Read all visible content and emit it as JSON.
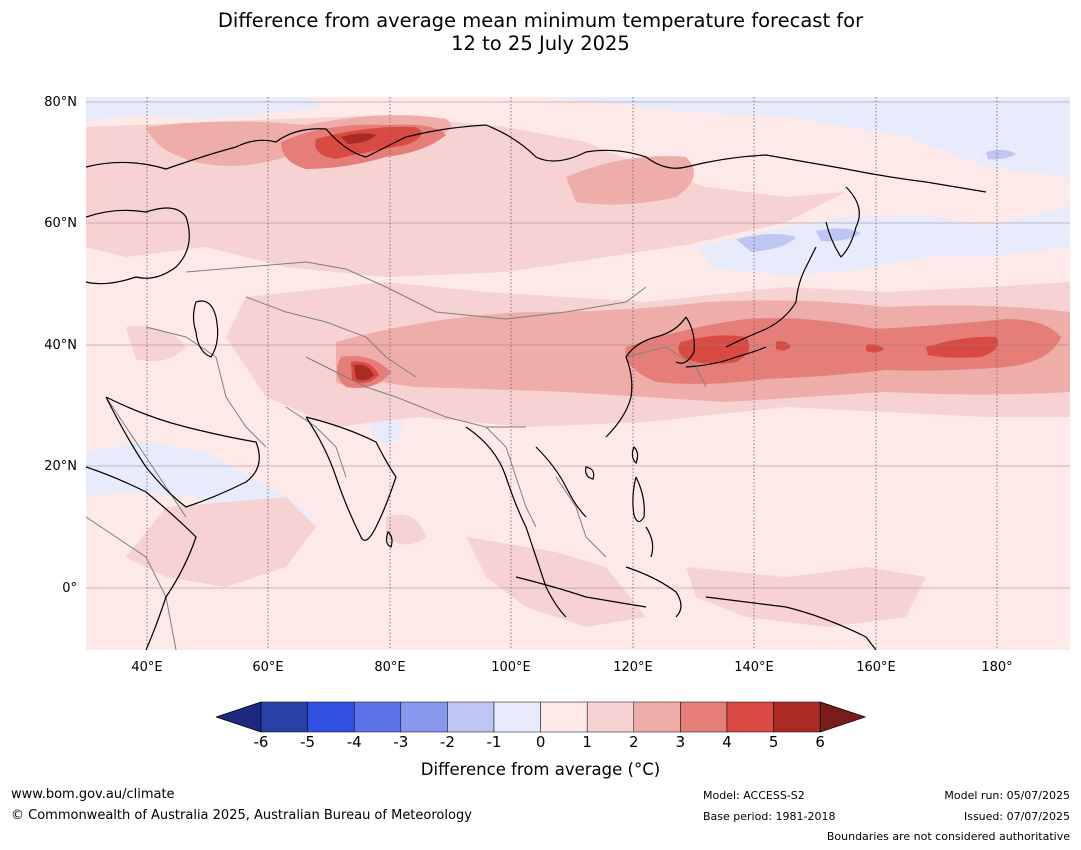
{
  "title_line1": "Difference from average mean minimum temperature forecast for",
  "title_line2": "12 to 25 July 2025",
  "map": {
    "lat_labels": [
      "80°N",
      "60°N",
      "40°N",
      "20°N",
      "0°"
    ],
    "lon_labels": [
      "40°E",
      "60°E",
      "80°E",
      "100°E",
      "120°E",
      "140°E",
      "160°E",
      "180°"
    ],
    "lon_range": [
      30,
      192
    ],
    "lat_range": [
      -10,
      81
    ]
  },
  "colorbar": {
    "ticks": [
      "-6",
      "-5",
      "-4",
      "-3",
      "-2",
      "-1",
      "0",
      "1",
      "2",
      "3",
      "4",
      "5",
      "6"
    ],
    "colors": [
      "#2a3ea8",
      "#3051e0",
      "#5c74e8",
      "#8797ec",
      "#bfc6f3",
      "#e8ebfb",
      "#fde9e8",
      "#f6d2d2",
      "#eeada9",
      "#e57e79",
      "#d84a42",
      "#a92b24"
    ],
    "under_color": "#1d2a80",
    "over_color": "#7a1d18",
    "label": "Difference from average ($^\\circ$C)",
    "label_display": "Difference from average (°C)"
  },
  "footer": {
    "website": "www.bom.gov.au/climate",
    "copyright": "© Commonwealth of Australia 2025, Australian Bureau of Meteorology",
    "model": "Model: ACCESS-S2",
    "base_period": "Base period: 1981-2018",
    "model_run": "Model run: 05/07/2025",
    "issued": "Issued: 07/07/2025",
    "boundaries_note": "Boundaries are not considered authoritative"
  }
}
